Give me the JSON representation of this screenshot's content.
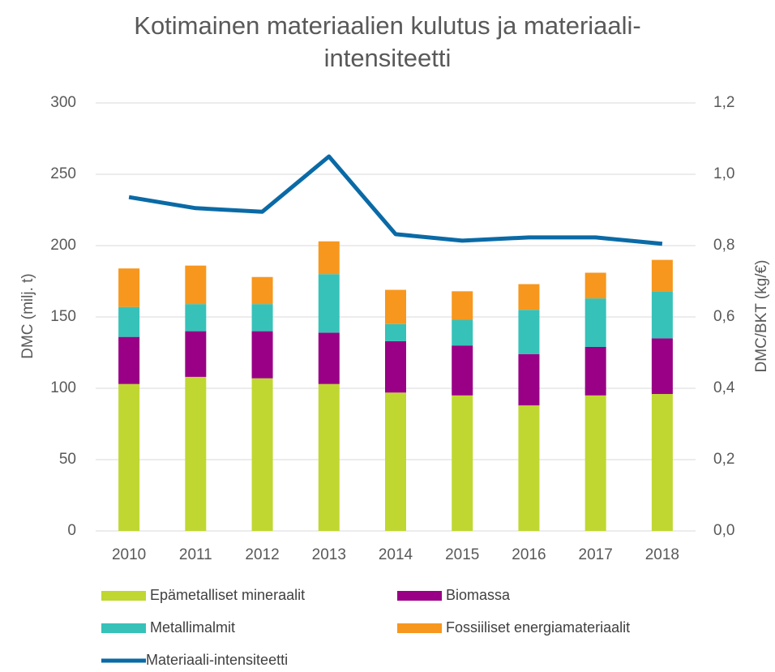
{
  "chart_data": {
    "type": "bar",
    "stacked": true,
    "title": "Kotimainen materiaalien kulutus ja materiaali-intensiteetti",
    "y_label": "DMC (milj. t)",
    "y2_label": "DMC/BKT (kg/€)",
    "categories": [
      "2010",
      "2011",
      "2012",
      "2013",
      "2014",
      "2015",
      "2016",
      "2017",
      "2018"
    ],
    "series": [
      {
        "name": "Epämetalliset mineraalit",
        "color": "#c0d731",
        "values": [
          103,
          108,
          107,
          103,
          97,
          95,
          88,
          95,
          96
        ]
      },
      {
        "name": "Biomassa",
        "color": "#990085",
        "values": [
          33,
          32,
          33,
          36,
          36,
          35,
          36,
          34,
          39
        ]
      },
      {
        "name": "Metallimalmit",
        "color": "#36c2b9",
        "values": [
          21,
          19,
          19,
          41,
          12,
          18,
          31,
          34,
          33
        ]
      },
      {
        "name": "Fossiiliset energiamateriaalit",
        "color": "#f7971e",
        "values": [
          27,
          27,
          19,
          23,
          24,
          20,
          18,
          18,
          22
        ]
      },
      {
        "name": "Materiaali-intensiteetti",
        "color": "#0a6aa6",
        "type": "line",
        "axis": "y2",
        "values": [
          0.936,
          0.905,
          0.895,
          1.05,
          0.832,
          0.814,
          0.823,
          0.823,
          0.805
        ]
      }
    ],
    "ylim": [
      0,
      300
    ],
    "yticks": [
      0,
      50,
      100,
      150,
      200,
      250,
      300
    ],
    "y2lim": [
      0,
      1.2
    ],
    "y2ticks": [
      {
        "value": 0,
        "label": "0,0"
      },
      {
        "value": 0.2,
        "label": "0,2"
      },
      {
        "value": 0.4,
        "label": "0,4"
      },
      {
        "value": 0.6,
        "label": "0,6"
      },
      {
        "value": 0.8,
        "label": "0,8"
      },
      {
        "value": 1.0,
        "label": "1,0"
      },
      {
        "value": 1.2,
        "label": "1,2"
      }
    ],
    "grid": true,
    "legend": "bottom"
  }
}
